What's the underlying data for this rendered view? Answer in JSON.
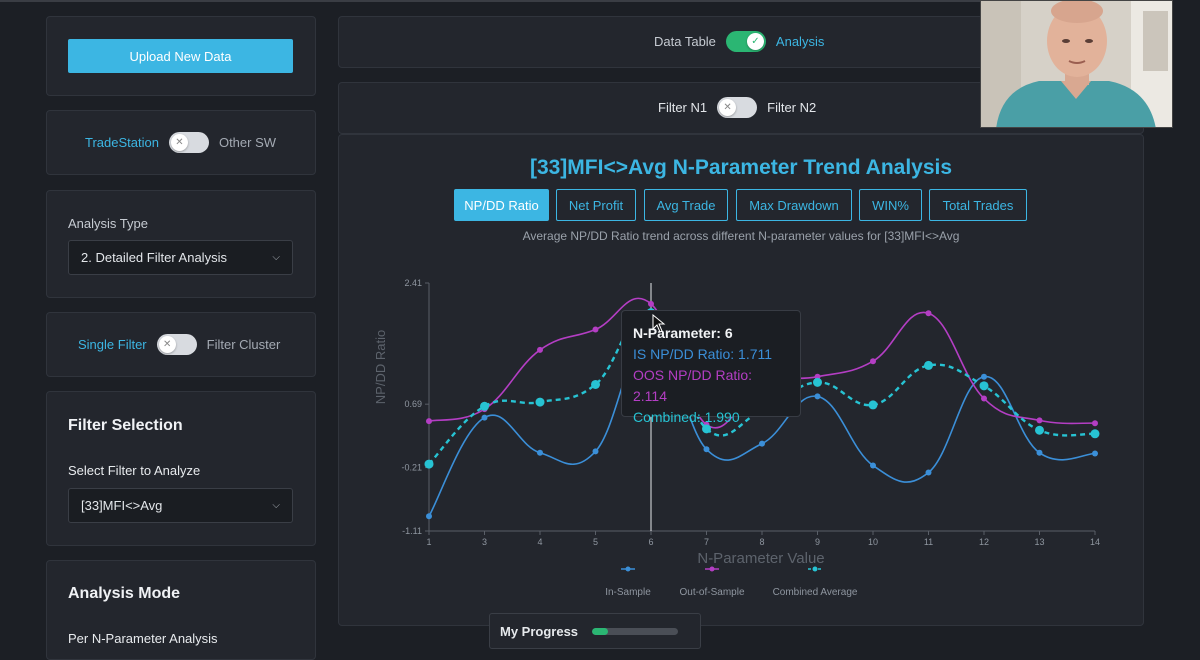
{
  "sidebar": {
    "upload_label": "Upload New Data",
    "platform": {
      "left": "TradeStation",
      "right": "Other SW"
    },
    "analysis_type": {
      "label": "Analysis Type",
      "value": "2. Detailed Filter Analysis"
    },
    "filter_mode": {
      "left": "Single Filter",
      "right": "Filter Cluster"
    },
    "filter_selection": {
      "title": "Filter Selection",
      "label": "Select Filter to Analyze",
      "value": "[33]MFI<>Avg"
    },
    "analysis_mode": {
      "title": "Analysis Mode",
      "sub": "Per N-Parameter Analysis"
    }
  },
  "main": {
    "view_toggle": {
      "left": "Data Table",
      "right": "Analysis"
    },
    "filter_toggle": {
      "left": "Filter N1",
      "right": "Filter N2"
    },
    "metrics": [
      "NP/DD Ratio",
      "Net Profit",
      "Avg Trade",
      "Max Drawdown",
      "WIN%",
      "Total Trades"
    ],
    "subtitle": "Average NP/DD Ratio trend across different N-parameter values for [33]MFI<>Avg"
  },
  "tooltip": {
    "title": "N-Parameter: 6",
    "is": "IS NP/DD Ratio: 1.711",
    "oos": "OOS NP/DD Ratio: 2.114",
    "combined": "Combined: 1.990"
  },
  "progress": {
    "label": "My Progress",
    "value": 0.18
  },
  "colors": {
    "accent": "#3cb6e3",
    "is": "#3b8fd8",
    "oos": "#b43ec4",
    "combined": "#27c3d3",
    "toggle_on": "#2bb673"
  },
  "chart_data": {
    "type": "line",
    "title": "[33]MFI<>Avg N-Parameter Trend Analysis",
    "xlabel": "N-Parameter Value",
    "ylabel": "NP/DD Ratio",
    "x": [
      1,
      3,
      4,
      5,
      6,
      7,
      8,
      9,
      10,
      11,
      12,
      13,
      14
    ],
    "x_ticks": [
      "1",
      "3",
      "4",
      "5",
      "6",
      "7",
      "8",
      "9",
      "10",
      "11",
      "12",
      "13",
      "14"
    ],
    "y_ticks": [
      "2.41",
      "0.69",
      "-0.21",
      "-1.11"
    ],
    "ylim": [
      -1.11,
      2.41
    ],
    "series": [
      {
        "name": "In-Sample",
        "values": [
          -0.9,
          0.5,
          0.0,
          0.02,
          1.711,
          0.05,
          0.13,
          0.8,
          -0.18,
          -0.28,
          1.08,
          0.0,
          -0.01
        ]
      },
      {
        "name": "Out-of-Sample",
        "values": [
          0.45,
          0.62,
          1.46,
          1.75,
          2.114,
          0.4,
          0.98,
          1.08,
          1.3,
          1.98,
          0.77,
          0.46,
          0.42
        ]
      },
      {
        "name": "Combined Average",
        "values": [
          -0.16,
          0.66,
          0.72,
          0.97,
          1.99,
          0.34,
          0.6,
          1.0,
          0.68,
          1.24,
          0.95,
          0.32,
          0.27
        ]
      }
    ],
    "legend": "bottom"
  }
}
